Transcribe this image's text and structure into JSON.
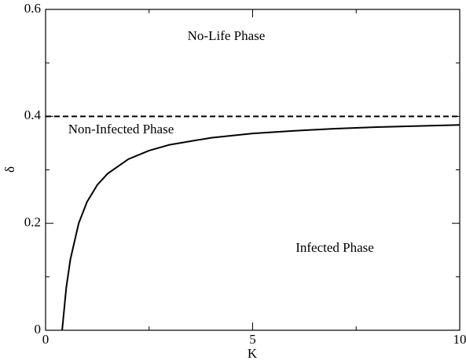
{
  "chart_data": {
    "type": "line",
    "xlabel": "K",
    "ylabel": "δ",
    "xlim": [
      0,
      10
    ],
    "ylim": [
      0,
      0.6
    ],
    "xticks": [
      0,
      5,
      10
    ],
    "yticks": [
      0,
      0.2,
      0.4,
      0.6
    ],
    "xminor": [
      2.5,
      7.5
    ],
    "yminor": [
      0.1,
      0.3,
      0.5
    ],
    "series": [
      {
        "color": "#000000",
        "dash": false,
        "x": [
          0.4,
          0.5,
          0.6,
          0.8,
          1,
          1.25,
          1.5,
          2,
          2.5,
          3,
          4,
          5,
          6,
          7,
          8,
          9,
          10
        ],
        "values": [
          0,
          0.08,
          0.133,
          0.2,
          0.24,
          0.272,
          0.293,
          0.32,
          0.336,
          0.347,
          0.36,
          0.368,
          0.373,
          0.377,
          0.38,
          0.382,
          0.384
        ]
      },
      {
        "color": "#000000",
        "dash": true,
        "x": [
          0,
          10
        ],
        "values": [
          0.4,
          0.4
        ]
      }
    ],
    "annotations": [
      "No-Life Phase",
      "Non-Infected Phase",
      "Infected Phase"
    ]
  }
}
